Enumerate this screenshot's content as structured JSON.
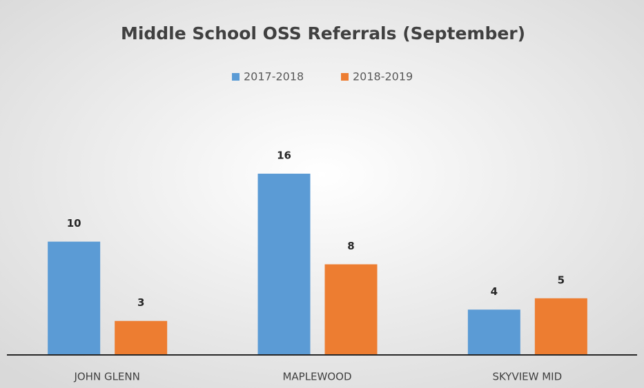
{
  "chart_data": {
    "type": "bar",
    "title": "Middle School OSS Referrals (September)",
    "categories": [
      "JOHN GLENN",
      "MAPLEWOOD",
      "SKYVIEW MID"
    ],
    "series": [
      {
        "name": "2017-2018",
        "color": "#5b9bd5",
        "values": [
          10,
          16,
          4
        ]
      },
      {
        "name": "2018-2019",
        "color": "#ed7d31",
        "values": [
          3,
          8,
          5
        ]
      }
    ],
    "legend": "top"
  }
}
